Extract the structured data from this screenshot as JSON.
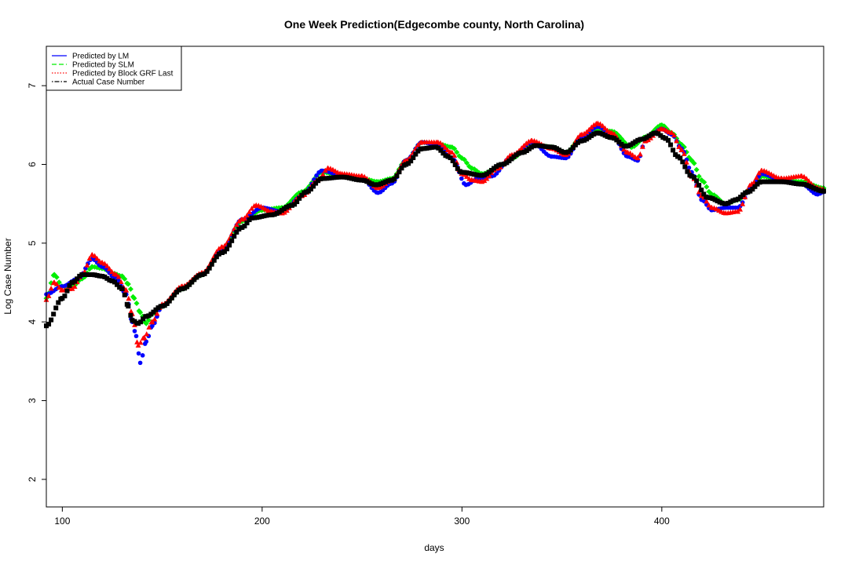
{
  "chart_data": {
    "type": "line",
    "title": "One Week Prediction(Edgecombe county, North Carolina)",
    "xlabel": "days",
    "ylabel": "Log Case Number",
    "xlim": [
      92,
      481
    ],
    "ylim": [
      1.65,
      7.5
    ],
    "xticks": [
      100,
      200,
      300,
      400
    ],
    "yticks": [
      2,
      3,
      4,
      5,
      6,
      7
    ],
    "grid": false,
    "legend_position": "top-left",
    "legend": [
      {
        "label": "Predicted by LM",
        "color": "#0000ff",
        "dash": "solid"
      },
      {
        "label": "Predicted by SLM",
        "color": "#00ee00",
        "dash": "dashed"
      },
      {
        "label": "Predicted by Block GRF Last",
        "color": "#ff0000",
        "dash": "dotted"
      },
      {
        "label": "Actual Case Number",
        "color": "#000000",
        "dash": "dotdash"
      }
    ],
    "series": [
      {
        "name": "Actual Case Number",
        "color": "#000000",
        "marker": "square",
        "points": [
          [
            92,
            3.95
          ],
          [
            100,
            4.3
          ],
          [
            105,
            4.5
          ],
          [
            110,
            4.6
          ],
          [
            115,
            4.6
          ],
          [
            120,
            4.58
          ],
          [
            125,
            4.52
          ],
          [
            130,
            4.42
          ],
          [
            133,
            4.2
          ],
          [
            135,
            4.02
          ],
          [
            138,
            3.98
          ],
          [
            142,
            4.07
          ],
          [
            150,
            4.2
          ],
          [
            160,
            4.42
          ],
          [
            170,
            4.6
          ],
          [
            180,
            4.88
          ],
          [
            190,
            5.2
          ],
          [
            195,
            5.32
          ],
          [
            205,
            5.36
          ],
          [
            215,
            5.48
          ],
          [
            222,
            5.65
          ],
          [
            230,
            5.82
          ],
          [
            240,
            5.84
          ],
          [
            250,
            5.8
          ],
          [
            257,
            5.74
          ],
          [
            265,
            5.8
          ],
          [
            272,
            6.0
          ],
          [
            280,
            6.2
          ],
          [
            287,
            6.22
          ],
          [
            293,
            6.1
          ],
          [
            300,
            5.9
          ],
          [
            310,
            5.86
          ],
          [
            320,
            6.0
          ],
          [
            330,
            6.15
          ],
          [
            337,
            6.24
          ],
          [
            345,
            6.22
          ],
          [
            352,
            6.15
          ],
          [
            360,
            6.3
          ],
          [
            368,
            6.4
          ],
          [
            375,
            6.34
          ],
          [
            382,
            6.23
          ],
          [
            390,
            6.32
          ],
          [
            397,
            6.4
          ],
          [
            402,
            6.33
          ],
          [
            408,
            6.1
          ],
          [
            415,
            5.85
          ],
          [
            423,
            5.58
          ],
          [
            432,
            5.5
          ],
          [
            437,
            5.55
          ],
          [
            443,
            5.65
          ],
          [
            450,
            5.78
          ],
          [
            460,
            5.78
          ],
          [
            470,
            5.75
          ],
          [
            481,
            5.66
          ]
        ]
      },
      {
        "name": "Predicted by SLM",
        "color": "#00ee00",
        "marker": "diamond",
        "points": [
          [
            92,
            4.3
          ],
          [
            96,
            4.6
          ],
          [
            100,
            4.45
          ],
          [
            105,
            4.45
          ],
          [
            110,
            4.55
          ],
          [
            115,
            4.7
          ],
          [
            120,
            4.68
          ],
          [
            125,
            4.62
          ],
          [
            130,
            4.58
          ],
          [
            133,
            4.48
          ],
          [
            136,
            4.3
          ],
          [
            139,
            4.12
          ],
          [
            142,
            3.98
          ],
          [
            145,
            4.1
          ],
          [
            150,
            4.2
          ],
          [
            160,
            4.42
          ],
          [
            170,
            4.6
          ],
          [
            180,
            4.9
          ],
          [
            190,
            5.28
          ],
          [
            200,
            5.42
          ],
          [
            210,
            5.45
          ],
          [
            220,
            5.65
          ],
          [
            230,
            5.9
          ],
          [
            240,
            5.86
          ],
          [
            250,
            5.82
          ],
          [
            258,
            5.78
          ],
          [
            265,
            5.82
          ],
          [
            272,
            6.05
          ],
          [
            280,
            6.28
          ],
          [
            288,
            6.26
          ],
          [
            295,
            6.22
          ],
          [
            300,
            6.08
          ],
          [
            305,
            5.95
          ],
          [
            310,
            5.88
          ],
          [
            318,
            5.95
          ],
          [
            325,
            6.08
          ],
          [
            335,
            6.26
          ],
          [
            345,
            6.22
          ],
          [
            352,
            6.15
          ],
          [
            360,
            6.35
          ],
          [
            368,
            6.45
          ],
          [
            375,
            6.42
          ],
          [
            385,
            6.22
          ],
          [
            392,
            6.35
          ],
          [
            400,
            6.5
          ],
          [
            405,
            6.4
          ],
          [
            410,
            6.25
          ],
          [
            415,
            6.05
          ],
          [
            420,
            5.8
          ],
          [
            425,
            5.62
          ],
          [
            432,
            5.5
          ],
          [
            438,
            5.55
          ],
          [
            445,
            5.7
          ],
          [
            450,
            5.85
          ],
          [
            460,
            5.8
          ],
          [
            470,
            5.78
          ],
          [
            481,
            5.7
          ]
        ]
      },
      {
        "name": "Predicted by LM",
        "color": "#0000ff",
        "marker": "circle",
        "points": [
          [
            92,
            4.35
          ],
          [
            100,
            4.45
          ],
          [
            108,
            4.55
          ],
          [
            115,
            4.8
          ],
          [
            120,
            4.7
          ],
          [
            127,
            4.55
          ],
          [
            132,
            4.35
          ],
          [
            135,
            4.0
          ],
          [
            137,
            3.82
          ],
          [
            139,
            3.48
          ],
          [
            142,
            3.75
          ],
          [
            145,
            3.95
          ],
          [
            150,
            4.2
          ],
          [
            160,
            4.42
          ],
          [
            170,
            4.6
          ],
          [
            180,
            4.92
          ],
          [
            190,
            5.3
          ],
          [
            200,
            5.45
          ],
          [
            210,
            5.4
          ],
          [
            220,
            5.6
          ],
          [
            230,
            5.92
          ],
          [
            240,
            5.86
          ],
          [
            250,
            5.82
          ],
          [
            258,
            5.64
          ],
          [
            265,
            5.76
          ],
          [
            272,
            6.05
          ],
          [
            280,
            6.28
          ],
          [
            288,
            6.25
          ],
          [
            295,
            6.08
          ],
          [
            302,
            5.74
          ],
          [
            308,
            5.82
          ],
          [
            315,
            5.85
          ],
          [
            325,
            6.1
          ],
          [
            335,
            6.28
          ],
          [
            345,
            6.1
          ],
          [
            352,
            6.08
          ],
          [
            360,
            6.35
          ],
          [
            368,
            6.48
          ],
          [
            375,
            6.38
          ],
          [
            383,
            6.1
          ],
          [
            388,
            6.05
          ],
          [
            392,
            6.32
          ],
          [
            400,
            6.45
          ],
          [
            405,
            6.38
          ],
          [
            410,
            6.2
          ],
          [
            415,
            5.9
          ],
          [
            420,
            5.55
          ],
          [
            425,
            5.42
          ],
          [
            432,
            5.45
          ],
          [
            438,
            5.45
          ],
          [
            445,
            5.7
          ],
          [
            450,
            5.88
          ],
          [
            460,
            5.8
          ],
          [
            470,
            5.75
          ],
          [
            478,
            5.62
          ],
          [
            481,
            5.65
          ]
        ]
      },
      {
        "name": "Predicted by Block GRF Last",
        "color": "#ff0000",
        "marker": "triangle",
        "points": [
          [
            92,
            4.28
          ],
          [
            96,
            4.5
          ],
          [
            100,
            4.4
          ],
          [
            105,
            4.42
          ],
          [
            110,
            4.6
          ],
          [
            115,
            4.85
          ],
          [
            120,
            4.75
          ],
          [
            127,
            4.6
          ],
          [
            132,
            4.4
          ],
          [
            135,
            4.1
          ],
          [
            138,
            3.7
          ],
          [
            141,
            3.8
          ],
          [
            145,
            4.0
          ],
          [
            150,
            4.22
          ],
          [
            160,
            4.45
          ],
          [
            170,
            4.62
          ],
          [
            180,
            4.95
          ],
          [
            190,
            5.3
          ],
          [
            197,
            5.48
          ],
          [
            205,
            5.4
          ],
          [
            210,
            5.38
          ],
          [
            220,
            5.6
          ],
          [
            228,
            5.8
          ],
          [
            233,
            5.95
          ],
          [
            240,
            5.88
          ],
          [
            250,
            5.85
          ],
          [
            258,
            5.7
          ],
          [
            265,
            5.8
          ],
          [
            272,
            6.05
          ],
          [
            280,
            6.28
          ],
          [
            288,
            6.28
          ],
          [
            295,
            6.15
          ],
          [
            300,
            5.88
          ],
          [
            305,
            5.8
          ],
          [
            310,
            5.78
          ],
          [
            318,
            5.95
          ],
          [
            325,
            6.12
          ],
          [
            335,
            6.3
          ],
          [
            345,
            6.2
          ],
          [
            352,
            6.12
          ],
          [
            360,
            6.38
          ],
          [
            368,
            6.52
          ],
          [
            375,
            6.4
          ],
          [
            383,
            6.15
          ],
          [
            388,
            6.08
          ],
          [
            392,
            6.3
          ],
          [
            400,
            6.45
          ],
          [
            405,
            6.4
          ],
          [
            410,
            6.18
          ],
          [
            415,
            5.85
          ],
          [
            420,
            5.6
          ],
          [
            425,
            5.45
          ],
          [
            432,
            5.38
          ],
          [
            438,
            5.4
          ],
          [
            445,
            5.75
          ],
          [
            450,
            5.92
          ],
          [
            460,
            5.82
          ],
          [
            470,
            5.85
          ],
          [
            478,
            5.7
          ],
          [
            481,
            5.68
          ]
        ]
      }
    ]
  }
}
